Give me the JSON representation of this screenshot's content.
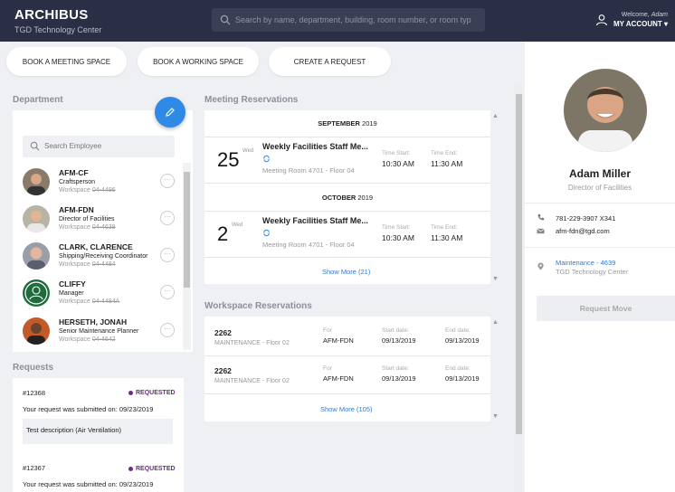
{
  "header": {
    "brand": "ARCHIBUS",
    "site": "TGD Technology Center",
    "search_placeholder": "Search by name, department, building, room number, or room typ",
    "welcome_prefix": "Welcome,",
    "welcome_user": "Adam",
    "account_label": "MY ACCOUNT ▾"
  },
  "actions": [
    "BOOK A MEETING SPACE",
    "BOOK A WORKING SPACE",
    "CREATE A REQUEST"
  ],
  "department": {
    "title": "Department",
    "search_placeholder": "Search Employee",
    "employees": [
      {
        "name": "AFM-CF",
        "role": "Craftsperson",
        "ws_prefix": "Workspace",
        "ws": "04-4496"
      },
      {
        "name": "AFM-FDN",
        "role": "Director of Facilities",
        "ws_prefix": "Workspace",
        "ws": "04-4639"
      },
      {
        "name": "CLARK, CLARENCE",
        "role": "Shipping/Receiving Coordinator",
        "ws_prefix": "Workspace",
        "ws": "04-4484"
      },
      {
        "name": "CLIFFY",
        "role": "Manager",
        "ws_prefix": "Workspace",
        "ws": "04-4484A"
      },
      {
        "name": "HERSETH, JONAH",
        "role": "Senior Maintenance Planner",
        "ws_prefix": "Workspace",
        "ws": "04-4642"
      }
    ]
  },
  "requests": {
    "title": "Requests",
    "items": [
      {
        "id": "#12368",
        "status": "REQUESTED",
        "submitted": "Your request was submitted on: 09/23/2019",
        "description": "Test description (Air Ventilation)"
      },
      {
        "id": "#12367",
        "status": "REQUESTED",
        "submitted": "Your request was submitted on: 09/23/2019"
      }
    ]
  },
  "meetings": {
    "title": "Meeting Reservations",
    "groups": [
      {
        "month": "SEPTEMBER",
        "year": "2019",
        "day": "25",
        "dow": "Wed",
        "title": "Weekly Facilities Staff Me...",
        "room": "Meeting Room 4701 - Floor 04",
        "start_label": "Time Start:",
        "start": "10:30 AM",
        "end_label": "Time End:",
        "end": "11:30 AM"
      },
      {
        "month": "OCTOBER",
        "year": "2019",
        "day": "2",
        "dow": "Wed",
        "title": "Weekly Facilities Staff Me...",
        "room": "Meeting Room 4701 - Floor 04",
        "start_label": "Time Start:",
        "start": "10:30 AM",
        "end_label": "Time End:",
        "end": "11:30 AM"
      }
    ],
    "show_more": "Show More (21)"
  },
  "workspaces": {
    "title": "Workspace Reservations",
    "rows": [
      {
        "id": "2262",
        "location": "MAINTENANCE - Floor 02",
        "for_label": "For",
        "for": "AFM-FDN",
        "start_label": "Start date:",
        "start": "09/13/2019",
        "end_label": "End date:",
        "end": "09/13/2019"
      },
      {
        "id": "2262",
        "location": "MAINTENANCE - Floor 02",
        "for_label": "For",
        "for": "AFM-FDN",
        "start_label": "Start date:",
        "start": "09/13/2019",
        "end_label": "End date:",
        "end": "09/13/2019"
      }
    ],
    "show_more": "Show More (105)"
  },
  "profile": {
    "name": "Adam Miller",
    "title": "Director of Facilities",
    "phone": "781-229-3907 X341",
    "email": "afm-fdn@tgd.com",
    "location_link": "Maintenance - 4639",
    "site": "TGD Technology Center",
    "request_move": "Request Move"
  },
  "icons": {
    "search": "search-icon",
    "account": "user-icon",
    "edit": "pencil-icon",
    "phone": "phone-icon",
    "email": "envelope-icon",
    "location": "map-pin-icon",
    "sync": "recurring-icon"
  }
}
